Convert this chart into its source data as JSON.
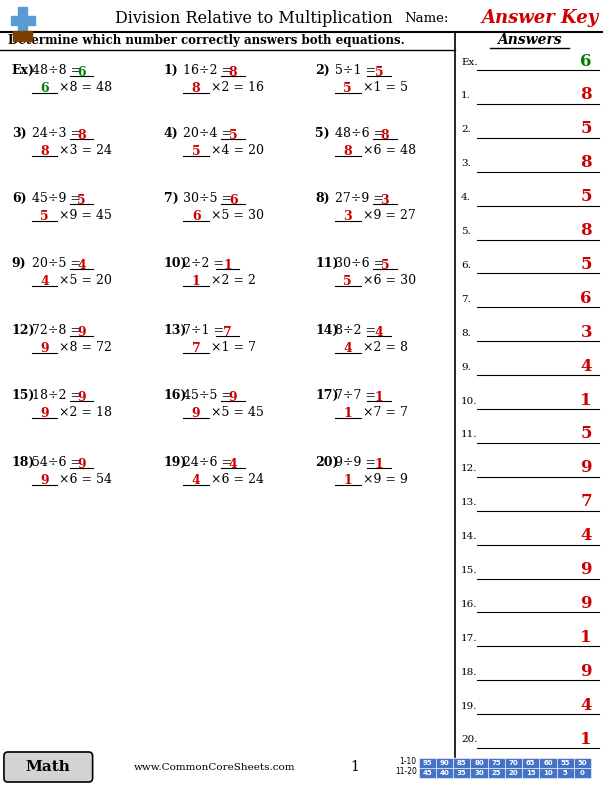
{
  "title": "Division Relative to Multiplication",
  "name_label": "Name:",
  "answer_key_text": "Answer Key",
  "instruction": "Determine which number correctly answers both equations.",
  "answers_header": "Answers",
  "website": "www.CommonCoreSheets.com",
  "page_number": "1",
  "score_rows": [
    {
      "range": "1-10",
      "scores": [
        95,
        90,
        85,
        80,
        75,
        70,
        65,
        60,
        55,
        50
      ]
    },
    {
      "range": "11-20",
      "scores": [
        45,
        40,
        35,
        30,
        25,
        20,
        15,
        10,
        5,
        0
      ]
    }
  ],
  "problems": [
    {
      "label": "Ex)",
      "div": "48÷8",
      "answer": 6,
      "mult_factor": 8,
      "product": 48
    },
    {
      "label": "1)",
      "div": "16÷2",
      "answer": 8,
      "mult_factor": 2,
      "product": 16
    },
    {
      "label": "2)",
      "div": "5÷1",
      "answer": 5,
      "mult_factor": 1,
      "product": 5
    },
    {
      "label": "3)",
      "div": "24÷3",
      "answer": 8,
      "mult_factor": 3,
      "product": 24
    },
    {
      "label": "4)",
      "div": "20÷4",
      "answer": 5,
      "mult_factor": 4,
      "product": 20
    },
    {
      "label": "5)",
      "div": "48÷6",
      "answer": 8,
      "mult_factor": 6,
      "product": 48
    },
    {
      "label": "6)",
      "div": "45÷9",
      "answer": 5,
      "mult_factor": 9,
      "product": 45
    },
    {
      "label": "7)",
      "div": "30÷5",
      "answer": 6,
      "mult_factor": 5,
      "product": 30
    },
    {
      "label": "8)",
      "div": "27÷9",
      "answer": 3,
      "mult_factor": 9,
      "product": 27
    },
    {
      "label": "9)",
      "div": "20÷5",
      "answer": 4,
      "mult_factor": 5,
      "product": 20
    },
    {
      "label": "10)",
      "div": "2÷2",
      "answer": 1,
      "mult_factor": 2,
      "product": 2
    },
    {
      "label": "11)",
      "div": "30÷6",
      "answer": 5,
      "mult_factor": 6,
      "product": 30
    },
    {
      "label": "12)",
      "div": "72÷8",
      "answer": 9,
      "mult_factor": 8,
      "product": 72
    },
    {
      "label": "13)",
      "div": "7÷1",
      "answer": 7,
      "mult_factor": 1,
      "product": 7
    },
    {
      "label": "14)",
      "div": "8÷2",
      "answer": 4,
      "mult_factor": 2,
      "product": 8
    },
    {
      "label": "15)",
      "div": "18÷2",
      "answer": 9,
      "mult_factor": 2,
      "product": 18
    },
    {
      "label": "16)",
      "div": "45÷5",
      "answer": 9,
      "mult_factor": 5,
      "product": 45
    },
    {
      "label": "17)",
      "div": "7÷7",
      "answer": 1,
      "mult_factor": 7,
      "product": 7
    },
    {
      "label": "18)",
      "div": "54÷6",
      "answer": 9,
      "mult_factor": 6,
      "product": 54
    },
    {
      "label": "19)",
      "div": "24÷6",
      "answer": 4,
      "mult_factor": 6,
      "product": 24
    },
    {
      "label": "20)",
      "div": "9÷9",
      "answer": 1,
      "mult_factor": 9,
      "product": 9
    }
  ],
  "answer_list": [
    {
      "label": "Ex.",
      "answer": 6,
      "color": "#008000"
    },
    {
      "label": "1.",
      "answer": 8,
      "color": "#cc0000"
    },
    {
      "label": "2.",
      "answer": 5,
      "color": "#cc0000"
    },
    {
      "label": "3.",
      "answer": 8,
      "color": "#cc0000"
    },
    {
      "label": "4.",
      "answer": 5,
      "color": "#cc0000"
    },
    {
      "label": "5.",
      "answer": 8,
      "color": "#cc0000"
    },
    {
      "label": "6.",
      "answer": 5,
      "color": "#cc0000"
    },
    {
      "label": "7.",
      "answer": 6,
      "color": "#cc0000"
    },
    {
      "label": "8.",
      "answer": 3,
      "color": "#cc0000"
    },
    {
      "label": "9.",
      "answer": 4,
      "color": "#cc0000"
    },
    {
      "label": "10.",
      "answer": 1,
      "color": "#cc0000"
    },
    {
      "label": "11.",
      "answer": 5,
      "color": "#cc0000"
    },
    {
      "label": "12.",
      "answer": 9,
      "color": "#cc0000"
    },
    {
      "label": "13.",
      "answer": 7,
      "color": "#cc0000"
    },
    {
      "label": "14.",
      "answer": 4,
      "color": "#cc0000"
    },
    {
      "label": "15.",
      "answer": 9,
      "color": "#cc0000"
    },
    {
      "label": "16.",
      "answer": 9,
      "color": "#cc0000"
    },
    {
      "label": "17.",
      "answer": 1,
      "color": "#cc0000"
    },
    {
      "label": "18.",
      "answer": 9,
      "color": "#cc0000"
    },
    {
      "label": "19.",
      "answer": 4,
      "color": "#cc0000"
    },
    {
      "label": "20.",
      "answer": 1,
      "color": "#cc0000"
    }
  ],
  "colors": {
    "answer_key_red": "#cc0000",
    "answer_green": "#008000",
    "answer_red": "#cc0000",
    "black": "#000000",
    "score_blue": "#4472c4",
    "math_box_bg": "#d3d3d3",
    "plus_blue": "#5b9bd5",
    "plus_brown": "#7B3F00"
  }
}
